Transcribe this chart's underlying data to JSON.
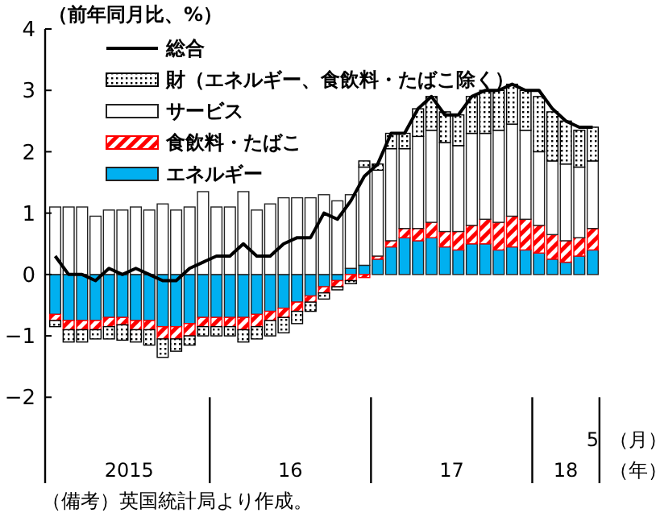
{
  "chart_data": {
    "type": "bar",
    "stacked": true,
    "title": "（前年同月比、%）",
    "categories": [
      null,
      null,
      null,
      null,
      null,
      null,
      null,
      null,
      null,
      null,
      null,
      null,
      null,
      null,
      null,
      null,
      null,
      null,
      null,
      null,
      null,
      null,
      null,
      null,
      null,
      null,
      null,
      null,
      null,
      null,
      null,
      null,
      null,
      null,
      null,
      null,
      null,
      null,
      null,
      null,
      "5"
    ],
    "ylim": [
      -3.4,
      4
    ],
    "yticks": [
      -2,
      -1,
      0,
      1,
      2,
      3,
      4
    ],
    "grid": false,
    "legend": "top left",
    "series": [
      {
        "name": "エネルギー",
        "color": "#00b0f0",
        "values": [
          -0.65,
          -0.75,
          -0.75,
          -0.75,
          -0.7,
          -0.7,
          -0.75,
          -0.75,
          -0.85,
          -0.85,
          -0.8,
          -0.7,
          -0.7,
          -0.7,
          -0.7,
          -0.65,
          -0.6,
          -0.55,
          -0.45,
          -0.35,
          -0.2,
          -0.1,
          0.1,
          0.15,
          0.25,
          0.45,
          0.6,
          0.55,
          0.6,
          0.45,
          0.4,
          0.5,
          0.5,
          0.4,
          0.45,
          0.4,
          0.35,
          0.25,
          0.2,
          0.3,
          0.4
        ]
      },
      {
        "name": "食飲料・たばこ",
        "color": "#ff0000",
        "values": [
          -0.1,
          -0.15,
          -0.15,
          -0.15,
          -0.15,
          -0.12,
          -0.15,
          -0.15,
          -0.2,
          -0.2,
          -0.2,
          -0.15,
          -0.15,
          -0.15,
          -0.2,
          -0.2,
          -0.15,
          -0.15,
          -0.15,
          -0.1,
          -0.1,
          -0.1,
          -0.1,
          -0.05,
          0.05,
          0.1,
          0.15,
          0.2,
          0.25,
          0.25,
          0.3,
          0.3,
          0.4,
          0.45,
          0.5,
          0.5,
          0.45,
          0.4,
          0.35,
          0.3,
          0.35
        ]
      },
      {
        "name": "サービス",
        "color": "#ffffff",
        "values": [
          1.1,
          1.1,
          1.1,
          0.95,
          1.05,
          1.05,
          1.1,
          1.05,
          1.15,
          1.05,
          1.1,
          1.35,
          1.1,
          1.1,
          1.35,
          1.05,
          1.15,
          1.25,
          1.25,
          1.25,
          1.3,
          1.2,
          1.2,
          1.6,
          1.4,
          1.5,
          1.3,
          1.5,
          1.5,
          1.45,
          1.4,
          1.5,
          1.4,
          1.5,
          1.5,
          1.45,
          1.2,
          1.2,
          1.25,
          1.15,
          1.1
        ]
      },
      {
        "name": "財（エネルギー、食飲料・たばこ除く）",
        "color": "#000000",
        "values": [
          -0.1,
          -0.2,
          -0.2,
          -0.15,
          -0.2,
          -0.25,
          -0.2,
          -0.25,
          -0.3,
          -0.2,
          -0.15,
          -0.15,
          -0.15,
          -0.15,
          -0.2,
          -0.2,
          -0.25,
          -0.25,
          -0.2,
          -0.15,
          -0.1,
          -0.05,
          -0.05,
          0.1,
          0.1,
          0.25,
          0.25,
          0.45,
          0.55,
          0.5,
          0.5,
          0.6,
          0.7,
          0.65,
          0.65,
          0.65,
          0.9,
          0.8,
          0.7,
          0.6,
          0.55
        ]
      },
      {
        "name": "総合",
        "type": "line",
        "color": "#000000",
        "values": [
          0.3,
          0.0,
          0.0,
          -0.1,
          0.1,
          0.0,
          0.1,
          0.0,
          -0.1,
          -0.1,
          0.1,
          0.2,
          0.3,
          0.3,
          0.5,
          0.3,
          0.3,
          0.5,
          0.6,
          0.6,
          1.0,
          0.9,
          1.2,
          1.6,
          1.8,
          2.3,
          2.3,
          2.7,
          2.9,
          2.6,
          2.6,
          2.9,
          3.0,
          3.0,
          3.1,
          3.0,
          3.0,
          2.7,
          2.5,
          2.4,
          2.4
        ]
      }
    ],
    "annotations": [
      "2015",
      "16",
      "17",
      "18",
      "（月）",
      "（年）",
      "（備考）英国統計局より作成。"
    ]
  }
}
